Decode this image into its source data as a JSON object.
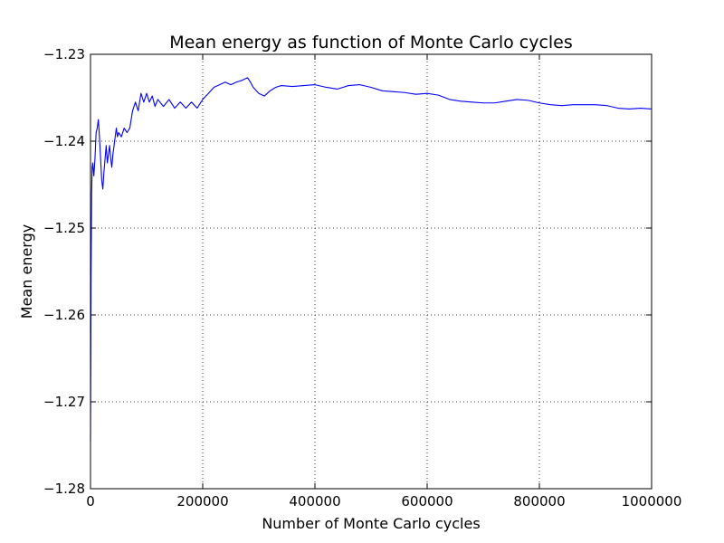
{
  "chart_data": {
    "type": "line",
    "title": "Mean energy as function of Monte Carlo cycles",
    "xlabel": "Number of Monte Carlo cycles",
    "ylabel": "Mean energy",
    "xlim": [
      0,
      1000000
    ],
    "ylim": [
      -1.28,
      -1.23
    ],
    "xticks": [
      0,
      200000,
      400000,
      600000,
      800000,
      1000000
    ],
    "xtick_labels": [
      "0",
      "200000",
      "400000",
      "600000",
      "800000",
      "1000000"
    ],
    "yticks": [
      -1.28,
      -1.27,
      -1.26,
      -1.25,
      -1.24,
      -1.23
    ],
    "ytick_labels": [
      "−1.28",
      "−1.27",
      "−1.26",
      "−1.25",
      "−1.24",
      "−1.23"
    ],
    "grid": true,
    "series": [
      {
        "name": "Mean energy",
        "color": "#0000ff",
        "x": [
          0,
          1000,
          2000,
          3000,
          4000,
          6000,
          8000,
          10000,
          12000,
          14000,
          16000,
          18000,
          20000,
          22000,
          24000,
          26000,
          28000,
          30000,
          32000,
          34000,
          36000,
          38000,
          40000,
          42000,
          44000,
          46000,
          48000,
          50000,
          55000,
          60000,
          65000,
          70000,
          75000,
          80000,
          85000,
          90000,
          95000,
          100000,
          105000,
          110000,
          115000,
          120000,
          130000,
          140000,
          150000,
          160000,
          170000,
          180000,
          190000,
          195000,
          200000,
          210000,
          220000,
          230000,
          240000,
          250000,
          260000,
          270000,
          280000,
          285000,
          290000,
          300000,
          310000,
          320000,
          330000,
          340000,
          360000,
          380000,
          400000,
          420000,
          440000,
          460000,
          480000,
          500000,
          520000,
          540000,
          560000,
          580000,
          600000,
          620000,
          640000,
          660000,
          680000,
          700000,
          720000,
          740000,
          760000,
          780000,
          800000,
          820000,
          840000,
          860000,
          880000,
          900000,
          920000,
          940000,
          960000,
          980000,
          1000000
        ],
        "y": [
          -1.2745,
          -1.256,
          -1.246,
          -1.243,
          -1.2425,
          -1.244,
          -1.242,
          -1.239,
          -1.2385,
          -1.2375,
          -1.2395,
          -1.242,
          -1.2445,
          -1.2455,
          -1.2435,
          -1.242,
          -1.2405,
          -1.2425,
          -1.2415,
          -1.2405,
          -1.242,
          -1.243,
          -1.2415,
          -1.2405,
          -1.2395,
          -1.2385,
          -1.2395,
          -1.239,
          -1.2395,
          -1.2385,
          -1.239,
          -1.2385,
          -1.2365,
          -1.2355,
          -1.2365,
          -1.2345,
          -1.2355,
          -1.2345,
          -1.2355,
          -1.2348,
          -1.236,
          -1.2352,
          -1.236,
          -1.2352,
          -1.2362,
          -1.2355,
          -1.2362,
          -1.2355,
          -1.2362,
          -1.2357,
          -1.2352,
          -1.2345,
          -1.2338,
          -1.2335,
          -1.2332,
          -1.2335,
          -1.2332,
          -1.233,
          -1.2327,
          -1.2332,
          -1.2338,
          -1.2345,
          -1.2348,
          -1.2342,
          -1.2338,
          -1.2336,
          -1.2337,
          -1.2336,
          -1.2335,
          -1.2338,
          -1.234,
          -1.2336,
          -1.2335,
          -1.2338,
          -1.2342,
          -1.2343,
          -1.2344,
          -1.2346,
          -1.2345,
          -1.2347,
          -1.2352,
          -1.2354,
          -1.2355,
          -1.2356,
          -1.2356,
          -1.2354,
          -1.2352,
          -1.2353,
          -1.2356,
          -1.2358,
          -1.2359,
          -1.2358,
          -1.2358,
          -1.2358,
          -1.2359,
          -1.2362,
          -1.2363,
          -1.2362,
          -1.2363
        ]
      }
    ]
  }
}
